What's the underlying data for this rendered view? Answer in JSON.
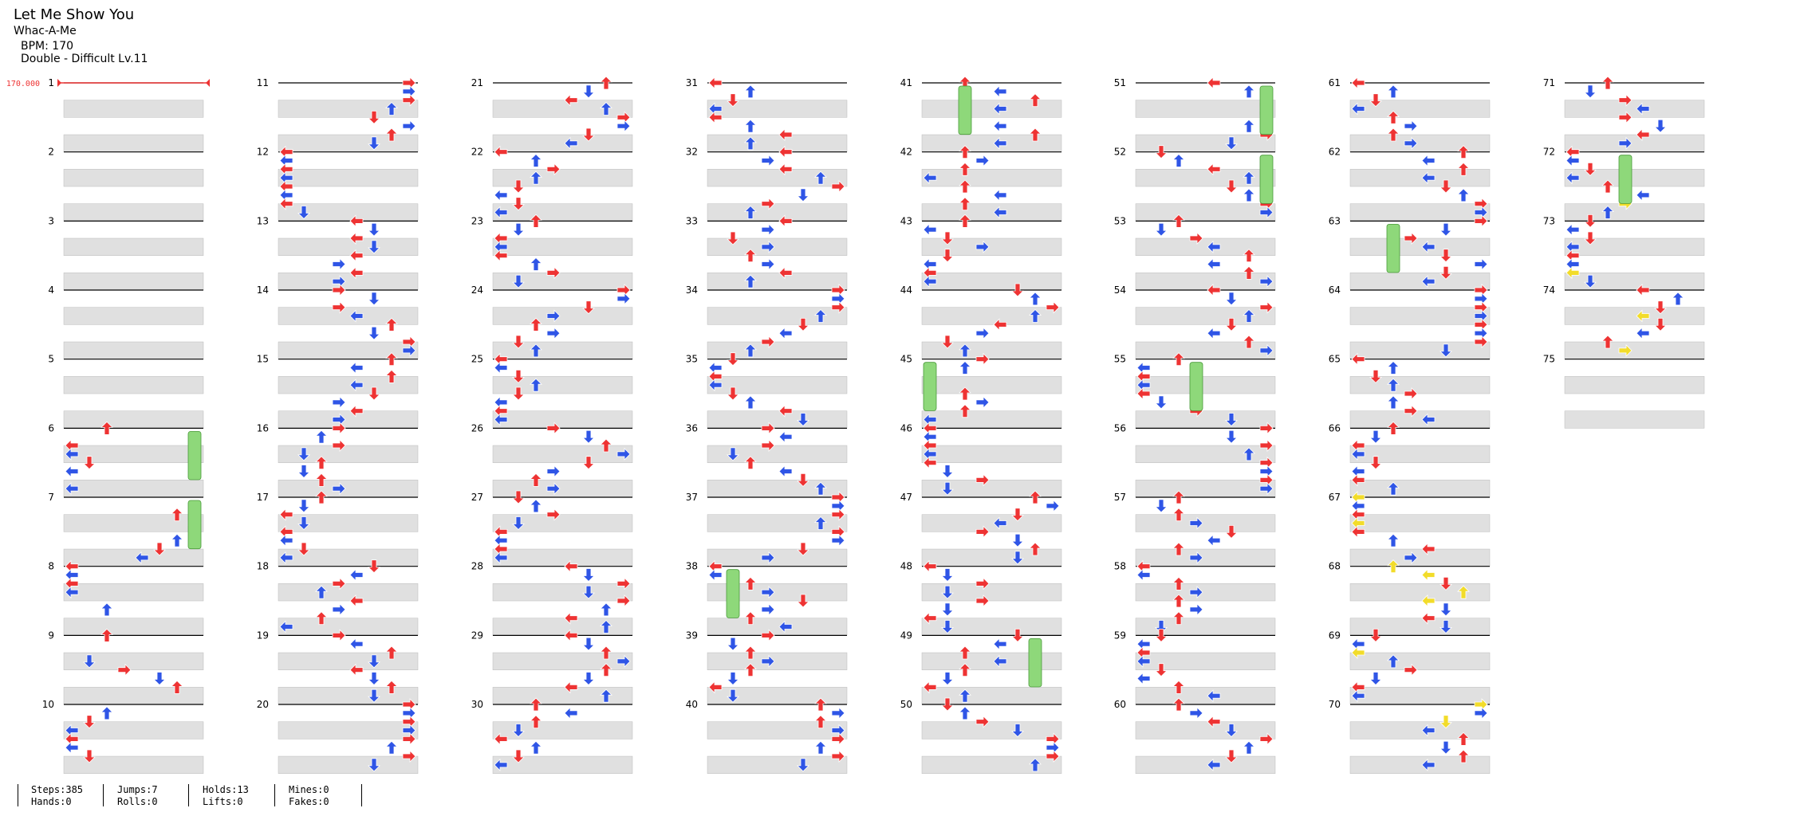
{
  "song": {
    "title": "Let Me Show You",
    "artist": "Whac-A-Me",
    "bpm_text": "BPM: 170",
    "difficulty_text": "Double - Difficult  Lv.11"
  },
  "bpm_marker": "170.000",
  "measures": [
    "1",
    "2",
    "3",
    "4",
    "5",
    "6",
    "7",
    "8",
    "9",
    "10",
    "11",
    "12",
    "13",
    "14",
    "15",
    "16",
    "17",
    "18",
    "19",
    "20",
    "21",
    "22",
    "23",
    "24",
    "25",
    "26",
    "27",
    "28",
    "29",
    "30",
    "31",
    "32",
    "33",
    "34",
    "35",
    "36",
    "37",
    "38",
    "39",
    "40",
    "41",
    "42",
    "43",
    "44",
    "45",
    "46",
    "47",
    "48",
    "49",
    "50",
    "51",
    "52",
    "53",
    "54",
    "55",
    "56",
    "57",
    "58",
    "59",
    "60",
    "61",
    "62",
    "63",
    "64",
    "65",
    "66",
    "67",
    "68",
    "69",
    "70",
    "71",
    "72",
    "73",
    "74",
    "75"
  ],
  "colors": {
    "red": "#ee3333",
    "blue": "#2f55e6",
    "yellow": "#f2dc2a",
    "hold": "#8ed87a",
    "band": "#e0e0e0"
  },
  "stats": {
    "steps": "Steps:385",
    "hands": "Hands:0",
    "jumps": "Jumps:7",
    "rolls": "Rolls:0",
    "holds": "Holds:13",
    "lifts": "Lifts:0",
    "mines": "Mines:0",
    "fakes": "Fakes:0"
  }
}
